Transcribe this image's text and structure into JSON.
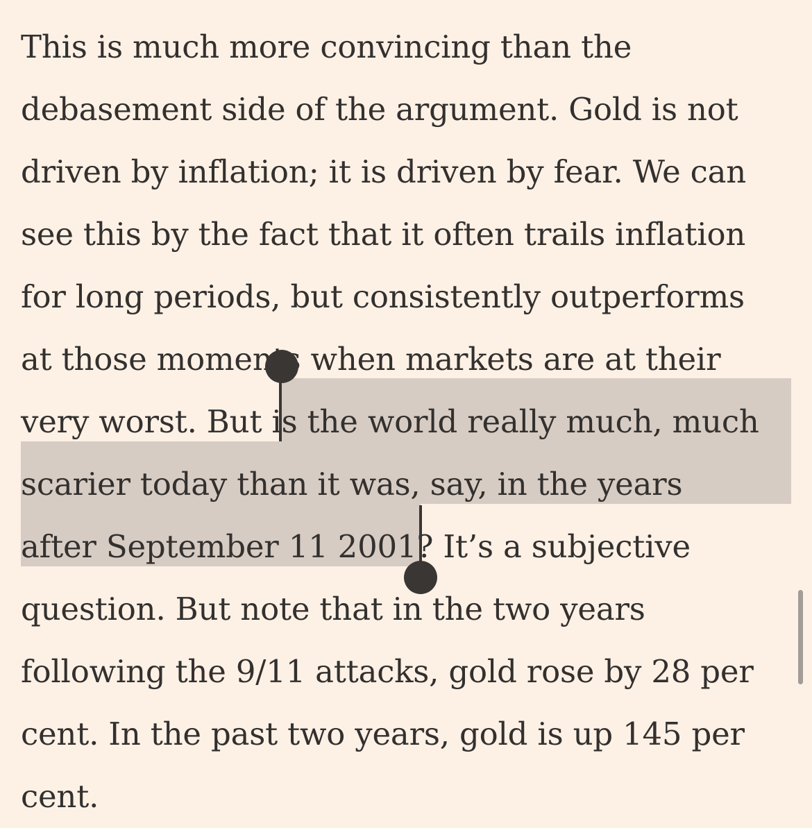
{
  "article": {
    "lines": [
      "This is much more convincing than the",
      "debasement side of the argument. Gold is not",
      "driven by inflation; it is driven by fear. We can",
      "see this by the fact that it often trails inflation",
      "for long periods, but consistently outperforms",
      "at those moments when markets are at their",
      "very worst. But is the world really much, much",
      "scarier today than it was, say, in the years",
      "after September 11 2001? It’s a subjective",
      "question. But note that in the two years",
      "following the 9/11 attacks, gold rose by 28 per",
      "cent. In the past two years, gold is up 145 per",
      "cent."
    ]
  },
  "selection": {
    "selected_text": "is the world really much, much scarier today than it was, say, in the years after September 11 2001",
    "highlight_color": "#D6CCC4"
  },
  "colors": {
    "background": "#FDF1E6",
    "text": "#33302E",
    "handle": "#3A3634",
    "scrollbar": "#A39C97"
  }
}
